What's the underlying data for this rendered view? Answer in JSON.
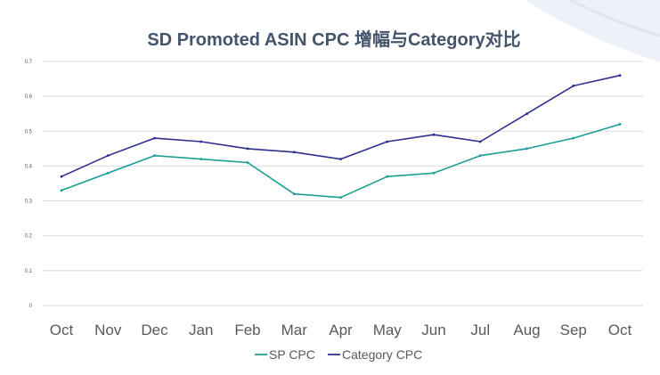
{
  "chart_data": {
    "type": "line",
    "title": "SD Promoted ASIN CPC 增幅与Category对比",
    "xlabel": "",
    "ylabel": "",
    "categories": [
      "Oct",
      "Nov",
      "Dec",
      "Jan",
      "Feb",
      "Mar",
      "Apr",
      "May",
      "Jun",
      "Jul",
      "Aug",
      "Sep",
      "Oct"
    ],
    "ylim": [
      0,
      0.7
    ],
    "yticks": [
      0,
      0.1,
      0.2,
      0.3,
      0.4,
      0.5,
      0.6,
      0.7
    ],
    "ytick_labels": [
      "0",
      "0.1",
      "0.2",
      "0.3",
      "0.4",
      "0.5",
      "0.6",
      "0.7"
    ],
    "grid": true,
    "legend_position": "bottom",
    "series": [
      {
        "name": "SP CPC",
        "color": "#1a9e96",
        "values": [
          0.33,
          0.38,
          0.43,
          0.42,
          0.41,
          0.32,
          0.31,
          0.37,
          0.38,
          0.43,
          0.45,
          0.48,
          0.52
        ]
      },
      {
        "name": "Category CPC",
        "color": "#2e2e8f",
        "values": [
          0.37,
          0.43,
          0.48,
          0.47,
          0.45,
          0.44,
          0.42,
          0.47,
          0.49,
          0.47,
          0.55,
          0.63,
          0.66
        ]
      }
    ],
    "colors": {
      "title": "#44546a",
      "axis_text": "#595959",
      "grid": "#d9d9d9",
      "decor": "#eef1f8"
    }
  }
}
